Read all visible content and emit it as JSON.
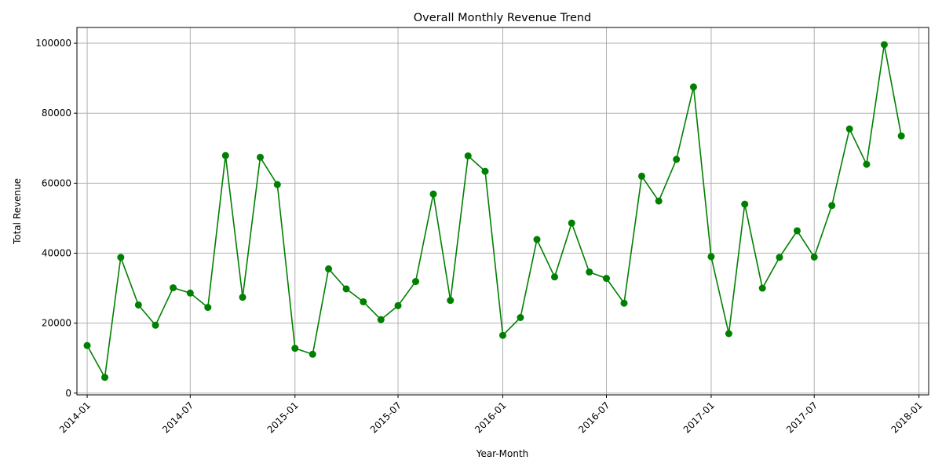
{
  "chart_data": {
    "type": "line",
    "title": "Overall Monthly Revenue Trend",
    "xlabel": "Year-Month",
    "ylabel": "Total Revenue",
    "grid": true,
    "line_color": "#008000",
    "marker": "circle",
    "x_ticks": [
      "2014-01",
      "2014-07",
      "2015-01",
      "2015-07",
      "2016-01",
      "2016-07",
      "2017-01",
      "2017-07",
      "2018-01"
    ],
    "y_ticks": [
      0,
      20000,
      40000,
      60000,
      80000,
      100000
    ],
    "ylim": [
      -500,
      104500
    ],
    "xlim": [
      "2013-12-14",
      "2018-01-18"
    ],
    "series": [
      {
        "x": [
          "2014-01",
          "2014-02",
          "2014-03",
          "2014-04",
          "2014-05",
          "2014-06",
          "2014-07",
          "2014-08",
          "2014-09",
          "2014-10",
          "2014-11",
          "2014-12",
          "2015-01",
          "2015-02",
          "2015-03",
          "2015-04",
          "2015-05",
          "2015-06",
          "2015-07",
          "2015-08",
          "2015-09",
          "2015-10",
          "2015-11",
          "2015-12",
          "2016-01",
          "2016-02",
          "2016-03",
          "2016-04",
          "2016-05",
          "2016-06",
          "2016-07",
          "2016-08",
          "2016-09",
          "2016-10",
          "2016-11",
          "2016-12",
          "2017-01",
          "2017-02",
          "2017-03",
          "2017-04",
          "2017-05",
          "2017-06",
          "2017-07",
          "2017-08",
          "2017-09",
          "2017-10",
          "2017-11",
          "2017-12"
        ],
        "values": [
          13600,
          4500,
          38800,
          25200,
          19400,
          30100,
          28600,
          24500,
          67900,
          27400,
          67400,
          59600,
          12800,
          11100,
          35500,
          29800,
          26100,
          21000,
          25000,
          31900,
          56900,
          26500,
          67800,
          63400,
          16500,
          21600,
          43900,
          33200,
          48600,
          34600,
          32800,
          25700,
          62000,
          54900,
          66800,
          87500,
          39000,
          17000,
          54000,
          30000,
          38800,
          46400,
          38900,
          53600,
          75500,
          65400,
          99600,
          73500
        ]
      }
    ]
  }
}
